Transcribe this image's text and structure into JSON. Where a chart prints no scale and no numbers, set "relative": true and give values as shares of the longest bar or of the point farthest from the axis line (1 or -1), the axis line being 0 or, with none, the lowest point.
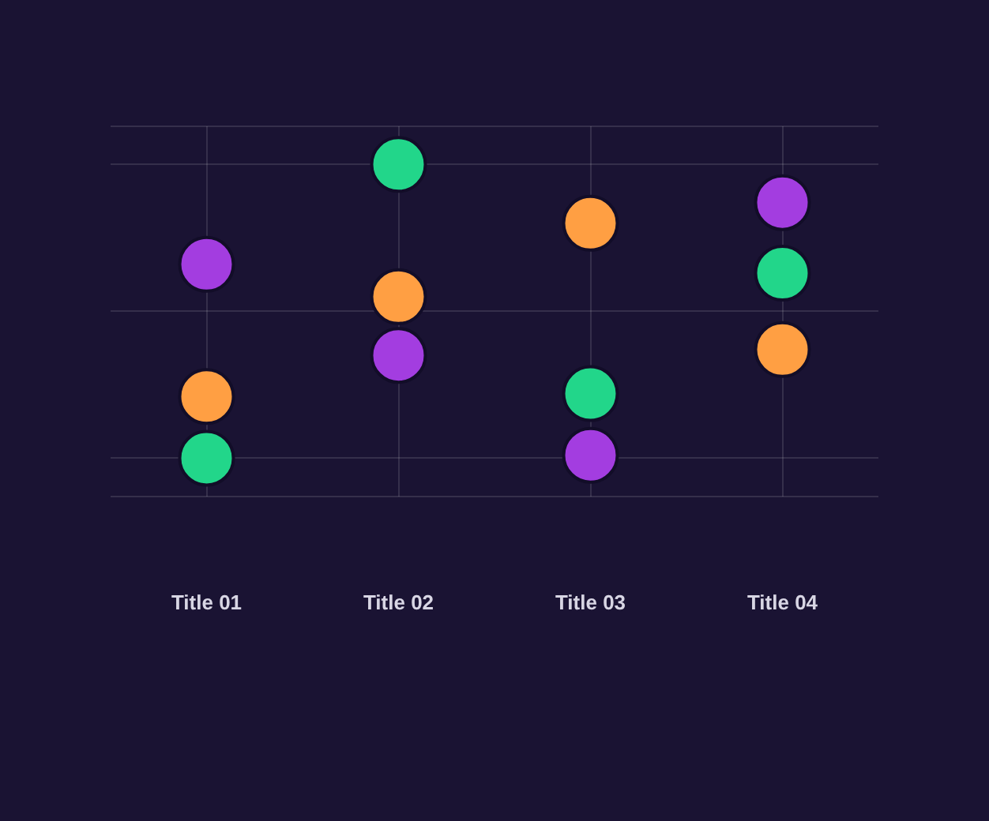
{
  "chart_data": {
    "type": "scatter",
    "relative": true,
    "categories": [
      "Title 01",
      "Title 02",
      "Title 03",
      "Title 04"
    ],
    "grid": true,
    "marker": "circle",
    "series": [
      {
        "color": "#22d68a",
        "values": [
          0,
          1,
          0.22,
          0.63
        ]
      },
      {
        "color": "#ff9f43",
        "values": [
          0.21,
          0.55,
          0.8,
          0.37
        ]
      },
      {
        "color": "#a33de0",
        "values": [
          0.66,
          0.35,
          0.01,
          0.87
        ]
      }
    ]
  }
}
